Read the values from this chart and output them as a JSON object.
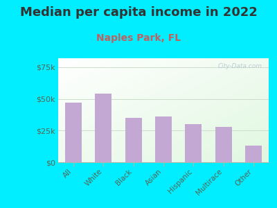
{
  "title": "Median per capita income in 2022",
  "subtitle": "Naples Park, FL",
  "categories": [
    "All",
    "White",
    "Black",
    "Asian",
    "Hispanic",
    "Multirace",
    "Other"
  ],
  "values": [
    47000,
    54000,
    35000,
    36000,
    30000,
    28000,
    13000
  ],
  "bar_color": "#c4a8d4",
  "background_outer": "#00eeff",
  "ytick_labels": [
    "$0",
    "$25k",
    "$50k",
    "$75k"
  ],
  "ytick_values": [
    0,
    25000,
    50000,
    75000
  ],
  "ylim": [
    0,
    82000
  ],
  "title_fontsize": 13,
  "subtitle_fontsize": 10,
  "subtitle_color": "#c06060",
  "title_color": "#333333",
  "tick_color": "#556655",
  "watermark_text": "City-Data.com",
  "grid_color": "#ccddcc",
  "spine_color": "#aabbaa"
}
